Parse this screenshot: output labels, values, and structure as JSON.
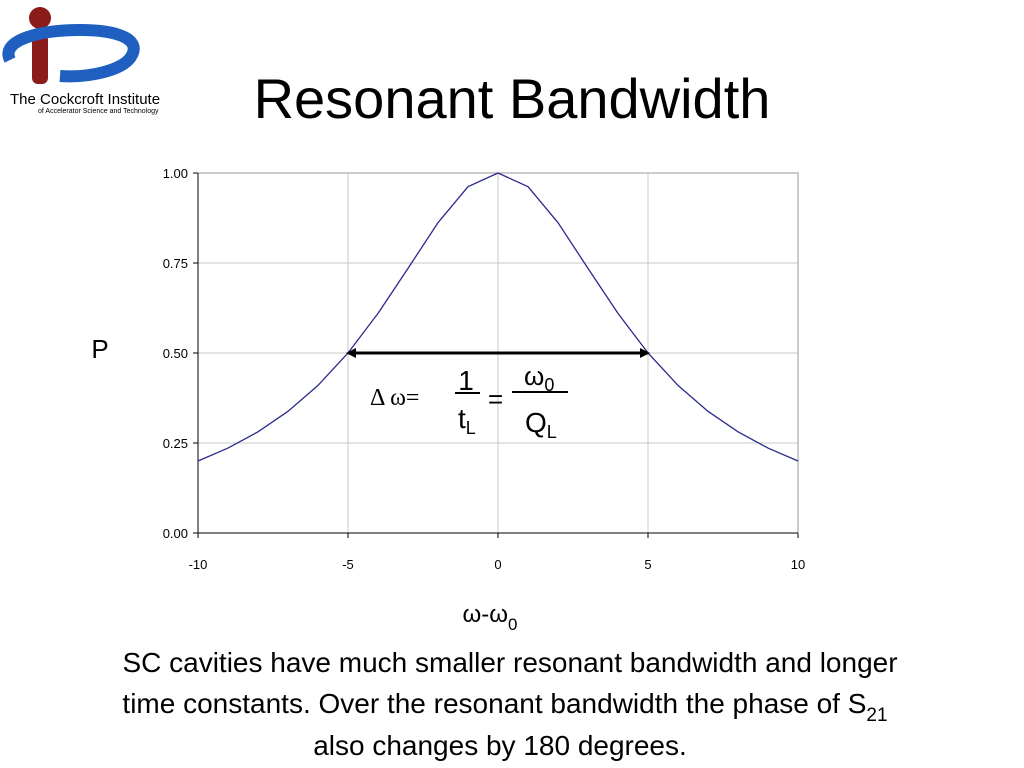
{
  "slide": {
    "logo": {
      "name": "The Cockcroft Institute",
      "subtitle": "of Accelerator Science and Technology"
    },
    "caption": {
      "line1": "SC cavities have much smaller resonant bandwidth and longer",
      "line2": "time constants. Over the resonant bandwidth the phase of S",
      "line2_sub": "21",
      "line3": "also changes by 180 degrees."
    }
  },
  "chart_data": {
    "type": "line",
    "title": "Resonant Bandwidth",
    "y_label": "P",
    "x_label": "ω-ω",
    "x_label_sub": "0",
    "x": [
      -10,
      -9,
      -8,
      -7,
      -6,
      -5,
      -4,
      -3,
      -2,
      -1,
      0,
      1,
      2,
      3,
      4,
      5,
      6,
      7,
      8,
      9,
      10
    ],
    "series": [
      {
        "color": "#2b2b8c",
        "values": [
          0.2,
          0.236,
          0.281,
          0.338,
          0.41,
          0.5,
          0.61,
          0.735,
          0.862,
          0.962,
          1,
          0.962,
          0.862,
          0.735,
          0.61,
          0.5,
          0.41,
          0.338,
          0.281,
          0.236,
          0.2
        ]
      }
    ],
    "xlim": [
      -10,
      10
    ],
    "ylim": [
      0,
      1
    ],
    "xticks": [
      -10,
      -5,
      0,
      5,
      10
    ],
    "yticks": [
      {
        "value": 0,
        "label": "0.00"
      },
      {
        "value": 0.25,
        "label": "0.25"
      },
      {
        "value": 0.5,
        "label": "0.50"
      },
      {
        "value": 0.75,
        "label": "0.75"
      },
      {
        "value": 1,
        "label": "1.00"
      }
    ],
    "grid": true,
    "bandwidth_arrow": {
      "x": [
        -5,
        5
      ],
      "y": 0.5
    },
    "formula": {
      "lhs": "Δ ω=",
      "num1": "1",
      "den1": "t",
      "den1_sub": "L",
      "eq": "=",
      "num2": "ω",
      "num2_sub": "0",
      "den2": "Q",
      "den2_sub": "L"
    }
  }
}
